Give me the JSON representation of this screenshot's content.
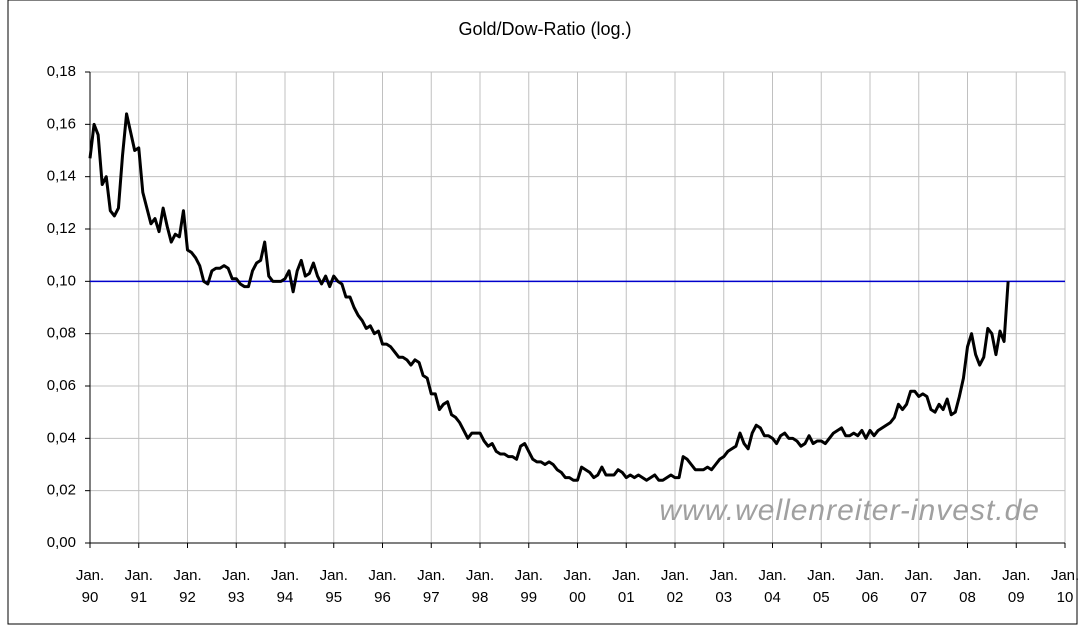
{
  "chart_data": {
    "type": "line",
    "title": "Gold/Dow-Ratio (log.)",
    "watermark": "www.wellenreiter-invest.de",
    "categories": [
      "Jan. 90",
      null,
      null,
      null,
      null,
      null,
      null,
      null,
      null,
      null,
      null,
      null,
      "Jan. 91",
      null,
      null,
      null,
      null,
      null,
      null,
      null,
      null,
      null,
      null,
      null,
      "Jan. 92",
      null,
      null,
      null,
      null,
      null,
      null,
      null,
      null,
      null,
      null,
      null,
      "Jan. 93",
      null,
      null,
      null,
      null,
      null,
      null,
      null,
      null,
      null,
      null,
      null,
      "Jan. 94",
      null,
      null,
      null,
      null,
      null,
      null,
      null,
      null,
      null,
      null,
      null,
      "Jan. 95",
      null,
      null,
      null,
      null,
      null,
      null,
      null,
      null,
      null,
      null,
      null,
      "Jan. 96",
      null,
      null,
      null,
      null,
      null,
      null,
      null,
      null,
      null,
      null,
      null,
      "Jan. 97",
      null,
      null,
      null,
      null,
      null,
      null,
      null,
      null,
      null,
      null,
      null,
      "Jan. 98",
      null,
      null,
      null,
      null,
      null,
      null,
      null,
      null,
      null,
      null,
      null,
      "Jan. 99",
      null,
      null,
      null,
      null,
      null,
      null,
      null,
      null,
      null,
      null,
      null,
      "Jan. 00",
      null,
      null,
      null,
      null,
      null,
      null,
      null,
      null,
      null,
      null,
      null,
      "Jan. 01",
      null,
      null,
      null,
      null,
      null,
      null,
      null,
      null,
      null,
      null,
      null,
      "Jan. 02",
      null,
      null,
      null,
      null,
      null,
      null,
      null,
      null,
      null,
      null,
      null,
      "Jan. 03",
      null,
      null,
      null,
      null,
      null,
      null,
      null,
      null,
      null,
      null,
      null,
      "Jan. 04",
      null,
      null,
      null,
      null,
      null,
      null,
      null,
      null,
      null,
      null,
      null,
      "Jan. 05",
      null,
      null,
      null,
      null,
      null,
      null,
      null,
      null,
      null,
      null,
      null,
      "Jan. 06",
      null,
      null,
      null,
      null,
      null,
      null,
      null,
      null,
      null,
      null,
      null,
      "Jan. 07",
      null,
      null,
      null,
      null,
      null,
      null,
      null,
      null,
      null,
      null,
      null,
      "Jan. 08",
      null,
      null,
      null,
      null,
      null,
      null,
      null,
      null,
      null,
      null,
      null,
      "Jan. 09",
      null,
      null,
      null,
      null,
      null,
      null,
      null,
      null,
      null,
      null,
      null,
      "Jan. 10"
    ],
    "series": [
      {
        "color": "#000000",
        "values": [
          0.147,
          0.16,
          0.156,
          0.137,
          0.14,
          0.127,
          0.125,
          0.128,
          0.148,
          0.164,
          0.157,
          0.15,
          0.151,
          0.134,
          0.128,
          0.122,
          0.124,
          0.119,
          0.128,
          0.121,
          0.115,
          0.118,
          0.117,
          0.127,
          0.112,
          0.111,
          0.109,
          0.106,
          0.1,
          0.099,
          0.104,
          0.105,
          0.105,
          0.106,
          0.105,
          0.101,
          0.101,
          0.099,
          0.098,
          0.098,
          0.104,
          0.107,
          0.108,
          0.115,
          0.102,
          0.1,
          0.1,
          0.1,
          0.101,
          0.104,
          0.096,
          0.104,
          0.108,
          0.102,
          0.103,
          0.107,
          0.102,
          0.099,
          0.102,
          0.098,
          0.102,
          0.1,
          0.099,
          0.094,
          0.094,
          0.09,
          0.087,
          0.085,
          0.082,
          0.083,
          0.08,
          0.081,
          0.076,
          0.076,
          0.075,
          0.073,
          0.071,
          0.071,
          0.07,
          0.068,
          0.07,
          0.069,
          0.064,
          0.063,
          0.057,
          0.057,
          0.051,
          0.053,
          0.054,
          0.049,
          0.048,
          0.046,
          0.043,
          0.04,
          0.042,
          0.042,
          0.042,
          0.039,
          0.037,
          0.038,
          0.035,
          0.034,
          0.034,
          0.033,
          0.033,
          0.032,
          0.037,
          0.038,
          0.035,
          0.032,
          0.031,
          0.031,
          0.03,
          0.031,
          0.03,
          0.028,
          0.027,
          0.025,
          0.025,
          0.024,
          0.024,
          0.029,
          0.028,
          0.027,
          0.025,
          0.026,
          0.029,
          0.026,
          0.026,
          0.026,
          0.028,
          0.027,
          0.025,
          0.026,
          0.025,
          0.026,
          0.025,
          0.024,
          0.025,
          0.026,
          0.024,
          0.024,
          0.025,
          0.026,
          0.025,
          0.025,
          0.033,
          0.032,
          0.03,
          0.028,
          0.028,
          0.028,
          0.029,
          0.028,
          0.03,
          0.032,
          0.033,
          0.035,
          0.036,
          0.037,
          0.042,
          0.038,
          0.036,
          0.042,
          0.045,
          0.044,
          0.041,
          0.041,
          0.04,
          0.038,
          0.041,
          0.042,
          0.04,
          0.04,
          0.039,
          0.037,
          0.038,
          0.041,
          0.038,
          0.039,
          0.039,
          0.038,
          0.04,
          0.042,
          0.043,
          0.044,
          0.041,
          0.041,
          0.042,
          0.041,
          0.043,
          0.04,
          0.043,
          0.041,
          0.043,
          0.044,
          0.045,
          0.046,
          0.048,
          0.053,
          0.051,
          0.053,
          0.058,
          0.058,
          0.056,
          0.057,
          0.056,
          0.051,
          0.05,
          0.053,
          0.051,
          0.055,
          0.049,
          0.05,
          0.056,
          0.063,
          0.075,
          0.08,
          0.072,
          0.068,
          0.071,
          0.082,
          0.08,
          0.072,
          0.081,
          0.077,
          0.1,
          null,
          null,
          null,
          null,
          null,
          null,
          null,
          null,
          null,
          null,
          null,
          null,
          null,
          null
        ]
      }
    ],
    "reference_line": {
      "value": 0.1,
      "color": "#0000cc"
    },
    "ylim": [
      0,
      0.18
    ],
    "yticks": [
      {
        "value": 0,
        "label": "0,00"
      },
      {
        "value": 0.02,
        "label": "0,02"
      },
      {
        "value": 0.04,
        "label": "0,04"
      },
      {
        "value": 0.06,
        "label": "0,06"
      },
      {
        "value": 0.08,
        "label": "0,08"
      },
      {
        "value": 0.1,
        "label": "0,10"
      },
      {
        "value": 0.12,
        "label": "0,12"
      },
      {
        "value": 0.14,
        "label": "0,14"
      },
      {
        "value": 0.16,
        "label": "0,16"
      },
      {
        "value": 0.18,
        "label": "0,18"
      }
    ],
    "grid": true
  }
}
